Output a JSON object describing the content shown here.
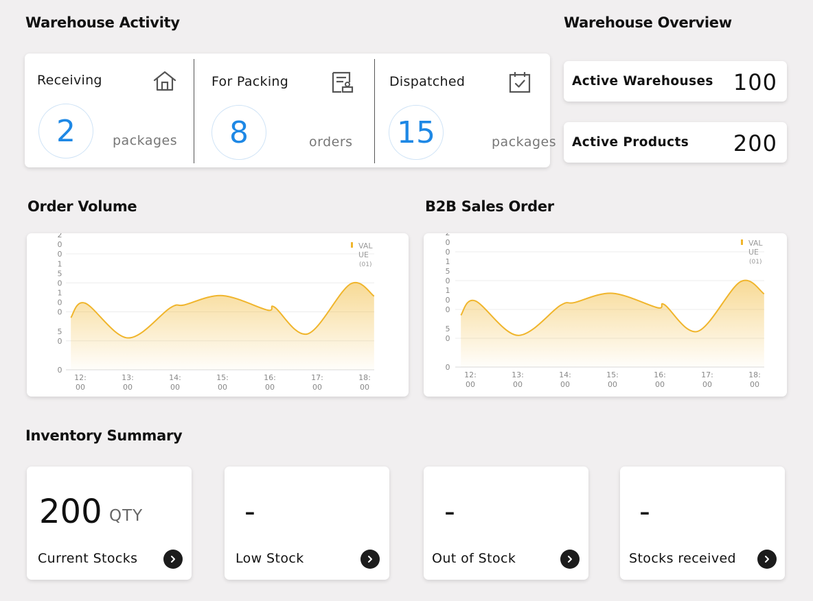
{
  "activity": {
    "title": "Warehouse Activity",
    "items": [
      {
        "label": "Receiving",
        "value": "2",
        "unit": "packages",
        "icon": "home-icon"
      },
      {
        "label": "For Packing",
        "value": "8",
        "unit": "orders",
        "icon": "packing-slip-icon"
      },
      {
        "label": "Dispatched",
        "value": "15",
        "unit": "packages",
        "icon": "calendar-check-icon"
      }
    ]
  },
  "overview": {
    "title": "Warehouse Overview",
    "items": [
      {
        "label": "Active Warehouses",
        "value": "100"
      },
      {
        "label": "Active Products",
        "value": "200"
      }
    ]
  },
  "charts": {
    "order_volume_title": "Order Volume",
    "b2b_title": "B2B Sales Order"
  },
  "chart_data": [
    {
      "type": "area",
      "title": "Order Volume",
      "x": [
        "12:00",
        "13:00",
        "14:00",
        "15:00",
        "16:00",
        "17:00",
        "18:00"
      ],
      "y_tick_labels": [
        "0",
        "50",
        "100",
        "150",
        "200"
      ],
      "ylim": [
        0,
        200
      ],
      "legend": [
        "VALUE (01)"
      ],
      "series": [
        {
          "name": "VALUE (01)",
          "x": [
            11.8,
            12.1,
            13.0,
            13.9,
            14.2,
            15.0,
            15.95,
            16.1,
            16.8,
            17.7,
            18.2
          ],
          "values": [
            90,
            115,
            55,
            107,
            112,
            128,
            103,
            108,
            62,
            148,
            127
          ]
        }
      ],
      "color": "#f0b52c"
    },
    {
      "type": "area",
      "title": "B2B Sales Order",
      "x": [
        "12:00",
        "13:00",
        "14:00",
        "15:00",
        "16:00",
        "17:00",
        "18:00"
      ],
      "y_tick_labels": [
        "0",
        "50",
        "100",
        "150",
        "200"
      ],
      "ylim": [
        0,
        200
      ],
      "legend": [
        "VALUE (01)"
      ],
      "series": [
        {
          "name": "VALUE (01)",
          "x": [
            11.8,
            12.1,
            13.0,
            13.9,
            14.2,
            15.0,
            15.95,
            16.1,
            16.8,
            17.7,
            18.2
          ],
          "values": [
            90,
            115,
            55,
            107,
            112,
            128,
            103,
            108,
            62,
            148,
            127
          ]
        }
      ],
      "color": "#f0b52c"
    }
  ],
  "inventory": {
    "title": "Inventory Summary",
    "items": [
      {
        "value": "200",
        "unit": "QTY",
        "label": "Current Stocks"
      },
      {
        "value": "-",
        "label": "Low Stock"
      },
      {
        "value": "-",
        "label": "Out of Stock"
      },
      {
        "value": "-",
        "label": "Stocks received"
      }
    ]
  }
}
